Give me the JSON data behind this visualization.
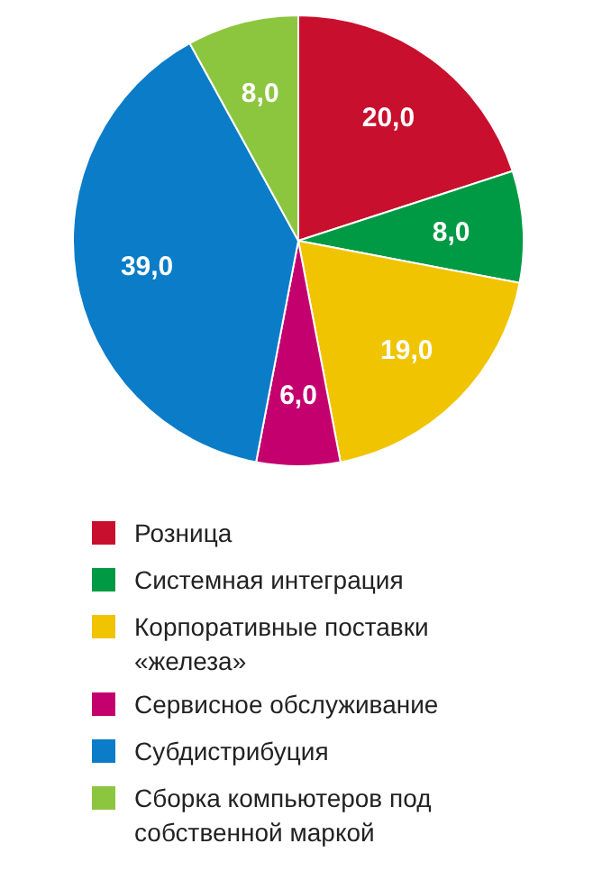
{
  "chart_data": {
    "type": "pie",
    "categories": [
      "Розница",
      "Системная интеграция",
      "Корпоративные поставки «железа»",
      "Сервисное обслуживание",
      "Субдистрибуция",
      "Сборка компьютеров под собственной маркой"
    ],
    "values": [
      20,
      8,
      19,
      6,
      39,
      8
    ],
    "value_labels": [
      "20,0",
      "8,0",
      "19,0",
      "6,0",
      "39,0",
      "8,0"
    ],
    "colors": [
      "#c8102e",
      "#009a44",
      "#f0c400",
      "#c4006e",
      "#0a7cc8",
      "#8cc63f"
    ],
    "legend": "bottom"
  }
}
